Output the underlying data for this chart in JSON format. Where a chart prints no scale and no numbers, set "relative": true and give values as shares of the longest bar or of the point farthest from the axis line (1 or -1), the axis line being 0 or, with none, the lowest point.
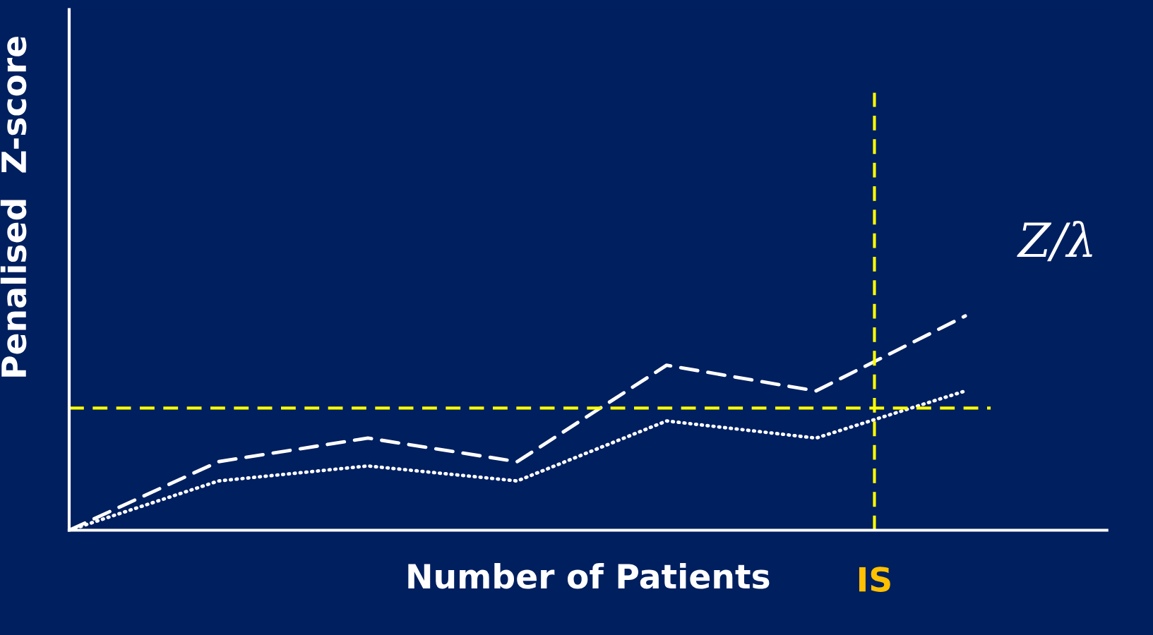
{
  "chart_data": {
    "type": "line",
    "relative": true,
    "xlabel": "Number of Patients",
    "ylabel": "Penalised  Z-score",
    "categories": [
      null,
      null,
      null,
      null,
      null,
      null,
      null
    ],
    "marker": "none",
    "series": [
      {
        "color": "#ffffff",
        "line_style": "dashed",
        "values": [
          0,
          0.32,
          0.43,
          0.32,
          0.77,
          0.65,
          1.0
        ]
      },
      {
        "color": "#ffffff",
        "line_style": "dotted",
        "values": [
          0,
          0.23,
          0.3,
          0.23,
          0.51,
          0.43,
          0.65
        ]
      }
    ],
    "ref_lines": [
      {
        "axis": "y",
        "value": 0.57,
        "color": "#ffff00",
        "line_style": "dashed"
      }
    ],
    "annotations": [
      "Z/λ",
      "IS"
    ]
  }
}
